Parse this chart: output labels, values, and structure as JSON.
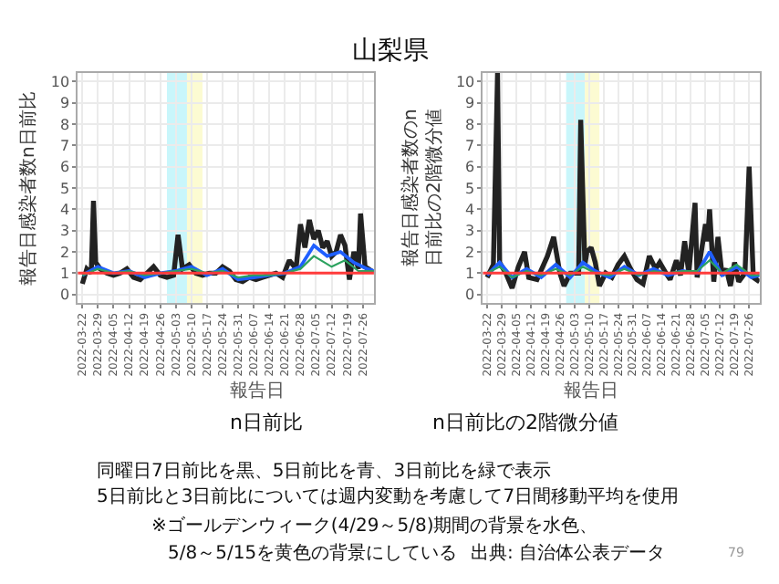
{
  "chart_data": [
    {
      "type": "line",
      "title": "n日前比",
      "xlabel": "報告日",
      "ylabel": "報告日感染者数n日前比",
      "xlim": [
        "2022-03-20",
        "2022-07-31"
      ],
      "ylim": [
        -0.4,
        10.4
      ],
      "yticks": [
        0,
        1,
        2,
        3,
        4,
        5,
        6,
        7,
        8,
        9,
        10
      ],
      "xticks": [
        {
          "value": "2022-03-22",
          "label": "2022-03-22"
        },
        {
          "value": "2022-03-29",
          "label": "2022-03-29"
        },
        {
          "value": "2022-04-05",
          "label": "2022-04-05"
        },
        {
          "value": "2022-04-12",
          "label": "2022-04-12"
        },
        {
          "value": "2022-04-19",
          "label": "2022-04-19"
        },
        {
          "value": "2022-04-26",
          "label": "2022-04-26"
        },
        {
          "value": "2022-05-03",
          "label": "2022-05-03"
        },
        {
          "value": "2022-05-10",
          "label": "2022-05-10"
        },
        {
          "value": "2022-05-17",
          "label": "2022-05-17"
        },
        {
          "value": "2022-05-24",
          "label": "2022-05-24"
        },
        {
          "value": "2022-05-31",
          "label": "2022-05-31"
        },
        {
          "value": "2022-06-07",
          "label": "2022-06-07"
        },
        {
          "value": "2022-06-14",
          "label": "2022-06-14"
        },
        {
          "value": "2022-06-21",
          "label": "2022-06-21"
        },
        {
          "value": "2022-06-28",
          "label": "2022-06-28"
        },
        {
          "value": "2022-07-05",
          "label": "2022-07-05"
        },
        {
          "value": "2022-07-12",
          "label": "2022-07-12"
        },
        {
          "value": "2022-07-19",
          "label": "2022-07-19"
        },
        {
          "value": "2022-07-26",
          "label": "2022-07-26"
        }
      ],
      "grid": true,
      "bands": [
        {
          "axis": "x",
          "from": "2022-04-29",
          "to": "2022-05-08",
          "color": "#c9f6fb"
        },
        {
          "axis": "x",
          "from": "2022-05-08",
          "to": "2022-05-15",
          "color": "#fcfbd2"
        }
      ],
      "ref_lines": [
        {
          "axis": "y",
          "value": 1,
          "color": "#ff3b3b"
        }
      ],
      "series": [
        {
          "color": "#222222",
          "x": [
            "2022-03-22",
            "2022-03-24",
            "2022-03-26",
            "2022-03-27",
            "2022-03-28",
            "2022-03-30",
            "2022-04-02",
            "2022-04-05",
            "2022-04-08",
            "2022-04-11",
            "2022-04-14",
            "2022-04-17",
            "2022-04-20",
            "2022-04-23",
            "2022-04-26",
            "2022-04-29",
            "2022-05-02",
            "2022-05-04",
            "2022-05-06",
            "2022-05-09",
            "2022-05-12",
            "2022-05-15",
            "2022-05-18",
            "2022-05-21",
            "2022-05-24",
            "2022-05-27",
            "2022-05-30",
            "2022-06-02",
            "2022-06-05",
            "2022-06-08",
            "2022-06-11",
            "2022-06-14",
            "2022-06-17",
            "2022-06-20",
            "2022-06-23",
            "2022-06-26",
            "2022-06-28",
            "2022-06-30",
            "2022-07-02",
            "2022-07-04",
            "2022-07-06",
            "2022-07-08",
            "2022-07-10",
            "2022-07-12",
            "2022-07-14",
            "2022-07-16",
            "2022-07-18",
            "2022-07-20",
            "2022-07-22",
            "2022-07-24",
            "2022-07-25",
            "2022-07-27",
            "2022-07-30"
          ],
          "values": [
            0.5,
            1.2,
            1.0,
            4.4,
            1.5,
            1.2,
            1.0,
            0.9,
            1.0,
            1.2,
            0.8,
            0.7,
            1.0,
            1.3,
            0.9,
            0.8,
            0.9,
            2.8,
            1.2,
            1.4,
            1.0,
            0.9,
            1.0,
            1.0,
            1.3,
            1.1,
            0.7,
            0.6,
            0.8,
            0.7,
            0.8,
            0.9,
            1.0,
            0.8,
            1.6,
            1.2,
            3.3,
            2.2,
            3.5,
            2.6,
            3.0,
            2.2,
            2.5,
            1.8,
            2.0,
            2.8,
            2.3,
            0.7,
            2.0,
            1.2,
            3.8,
            1.3,
            1.1
          ]
        },
        {
          "color": "#1f5fff",
          "x": [
            "2022-03-22",
            "2022-03-29",
            "2022-04-05",
            "2022-04-12",
            "2022-04-19",
            "2022-04-26",
            "2022-05-03",
            "2022-05-10",
            "2022-05-17",
            "2022-05-24",
            "2022-05-31",
            "2022-06-07",
            "2022-06-14",
            "2022-06-21",
            "2022-06-28",
            "2022-07-04",
            "2022-07-10",
            "2022-07-16",
            "2022-07-22",
            "2022-07-28",
            "2022-07-31"
          ],
          "values": [
            0.9,
            1.3,
            1.0,
            1.1,
            0.8,
            1.0,
            1.1,
            1.3,
            0.9,
            1.2,
            0.7,
            0.8,
            0.9,
            1.0,
            1.3,
            2.3,
            1.8,
            2.0,
            1.5,
            1.2,
            1.1
          ]
        },
        {
          "color": "#2ca25f",
          "x": [
            "2022-03-22",
            "2022-03-29",
            "2022-04-05",
            "2022-04-12",
            "2022-04-19",
            "2022-04-26",
            "2022-05-03",
            "2022-05-10",
            "2022-05-17",
            "2022-05-24",
            "2022-05-31",
            "2022-06-07",
            "2022-06-14",
            "2022-06-21",
            "2022-06-28",
            "2022-07-04",
            "2022-07-12",
            "2022-07-18",
            "2022-07-24",
            "2022-07-31"
          ],
          "values": [
            0.9,
            1.2,
            1.0,
            1.1,
            0.9,
            1.0,
            1.1,
            1.2,
            1.0,
            1.1,
            0.8,
            0.9,
            0.9,
            1.0,
            1.2,
            1.8,
            1.3,
            1.6,
            1.1,
            1.1
          ]
        }
      ],
      "annotations": [
        "山梨県",
        "同曜日7日前比を黒、5日前比を青、3日前比を緑で表示",
        "5日前比と3日前比については週内変動を考慮して7日間移動平均を使用",
        "※ゴールデンウィーク(4/29～5/8)期間の背景を水色、",
        "5/8～5/15を黄色の背景にしている",
        "出典: 自治体公表データ",
        "79"
      ]
    },
    {
      "type": "line",
      "title": "n日前比の2階微分値",
      "xlabel": "報告日",
      "ylabel": "報告日感染者数のn日前比の2階微分値",
      "xlim": [
        "2022-03-20",
        "2022-07-31"
      ],
      "ylim": [
        -0.4,
        10.4
      ],
      "yticks": [
        0,
        1,
        2,
        3,
        4,
        5,
        6,
        7,
        8,
        9,
        10
      ],
      "xticks": [
        {
          "value": "2022-03-22",
          "label": "2022-03-22"
        },
        {
          "value": "2022-03-29",
          "label": "2022-03-29"
        },
        {
          "value": "2022-04-05",
          "label": "2022-04-05"
        },
        {
          "value": "2022-04-12",
          "label": "2022-04-12"
        },
        {
          "value": "2022-04-19",
          "label": "2022-04-19"
        },
        {
          "value": "2022-04-26",
          "label": "2022-04-26"
        },
        {
          "value": "2022-05-03",
          "label": "2022-05-03"
        },
        {
          "value": "2022-05-10",
          "label": "2022-05-10"
        },
        {
          "value": "2022-05-17",
          "label": "2022-05-17"
        },
        {
          "value": "2022-05-24",
          "label": "2022-05-24"
        },
        {
          "value": "2022-05-31",
          "label": "2022-05-31"
        },
        {
          "value": "2022-06-07",
          "label": "2022-06-07"
        },
        {
          "value": "2022-06-14",
          "label": "2022-06-14"
        },
        {
          "value": "2022-06-21",
          "label": "2022-06-21"
        },
        {
          "value": "2022-06-28",
          "label": "2022-06-28"
        },
        {
          "value": "2022-07-05",
          "label": "2022-07-05"
        },
        {
          "value": "2022-07-12",
          "label": "2022-07-12"
        },
        {
          "value": "2022-07-19",
          "label": "2022-07-19"
        },
        {
          "value": "2022-07-26",
          "label": "2022-07-26"
        }
      ],
      "grid": true,
      "bands": [
        {
          "axis": "x",
          "from": "2022-04-29",
          "to": "2022-05-08",
          "color": "#c9f6fb"
        },
        {
          "axis": "x",
          "from": "2022-05-08",
          "to": "2022-05-15",
          "color": "#fcfbd2"
        }
      ],
      "ref_lines": [
        {
          "axis": "y",
          "value": 1,
          "color": "#ff3b3b"
        }
      ],
      "series": [
        {
          "color": "#222222",
          "x": [
            "2022-03-22",
            "2022-03-25",
            "2022-03-27",
            "2022-03-28",
            "2022-03-31",
            "2022-04-03",
            "2022-04-06",
            "2022-04-09",
            "2022-04-11",
            "2022-04-15",
            "2022-04-20",
            "2022-04-23",
            "2022-04-26",
            "2022-04-28",
            "2022-05-01",
            "2022-05-05",
            "2022-05-06",
            "2022-05-08",
            "2022-05-09",
            "2022-05-11",
            "2022-05-13",
            "2022-05-15",
            "2022-05-18",
            "2022-05-21",
            "2022-05-24",
            "2022-05-27",
            "2022-05-30",
            "2022-06-02",
            "2022-06-05",
            "2022-06-08",
            "2022-06-11",
            "2022-06-13",
            "2022-06-16",
            "2022-06-18",
            "2022-06-21",
            "2022-06-23",
            "2022-06-25",
            "2022-06-27",
            "2022-06-30",
            "2022-07-01",
            "2022-07-03",
            "2022-07-05",
            "2022-07-06",
            "2022-07-07",
            "2022-07-09",
            "2022-07-11",
            "2022-07-13",
            "2022-07-15",
            "2022-07-17",
            "2022-07-19",
            "2022-07-21",
            "2022-07-24",
            "2022-07-26",
            "2022-07-28",
            "2022-07-31"
          ],
          "values": [
            0.8,
            1.4,
            10.4,
            1.5,
            1.0,
            0.3,
            1.3,
            2.0,
            0.8,
            0.7,
            1.8,
            2.7,
            1.0,
            0.4,
            1.0,
            1.0,
            8.2,
            1.4,
            2.0,
            2.2,
            1.5,
            0.4,
            1.0,
            0.8,
            1.4,
            1.8,
            1.2,
            0.7,
            0.5,
            1.8,
            1.2,
            1.5,
            1.0,
            0.7,
            1.6,
            0.9,
            2.5,
            1.0,
            4.3,
            0.8,
            2.0,
            3.3,
            2.5,
            4.0,
            0.6,
            2.7,
            0.9,
            1.2,
            0.4,
            1.5,
            0.6,
            1.0,
            6.0,
            0.8,
            0.6
          ]
        },
        {
          "color": "#1f5fff",
          "x": [
            "2022-03-22",
            "2022-03-28",
            "2022-04-03",
            "2022-04-10",
            "2022-04-17",
            "2022-04-24",
            "2022-05-01",
            "2022-05-07",
            "2022-05-13",
            "2022-05-20",
            "2022-05-27",
            "2022-06-03",
            "2022-06-10",
            "2022-06-17",
            "2022-06-24",
            "2022-07-01",
            "2022-07-07",
            "2022-07-13",
            "2022-07-20",
            "2022-07-27",
            "2022-07-31"
          ],
          "values": [
            0.9,
            1.5,
            0.8,
            1.2,
            0.8,
            1.4,
            0.8,
            1.5,
            1.1,
            0.8,
            1.3,
            0.9,
            1.2,
            0.9,
            1.1,
            1.0,
            2.0,
            0.9,
            1.3,
            0.8,
            0.9
          ]
        },
        {
          "color": "#2ca25f",
          "x": [
            "2022-03-22",
            "2022-03-28",
            "2022-04-03",
            "2022-04-10",
            "2022-04-17",
            "2022-04-24",
            "2022-05-01",
            "2022-05-07",
            "2022-05-13",
            "2022-05-20",
            "2022-05-27",
            "2022-06-03",
            "2022-06-10",
            "2022-06-17",
            "2022-06-24",
            "2022-07-01",
            "2022-07-07",
            "2022-07-13",
            "2022-07-20",
            "2022-07-27",
            "2022-07-31"
          ],
          "values": [
            1.0,
            1.3,
            0.8,
            1.1,
            0.9,
            1.2,
            0.9,
            1.3,
            1.0,
            0.9,
            1.2,
            0.9,
            1.1,
            1.0,
            1.1,
            1.1,
            1.6,
            1.0,
            1.4,
            0.9,
            0.9
          ]
        }
      ]
    }
  ]
}
